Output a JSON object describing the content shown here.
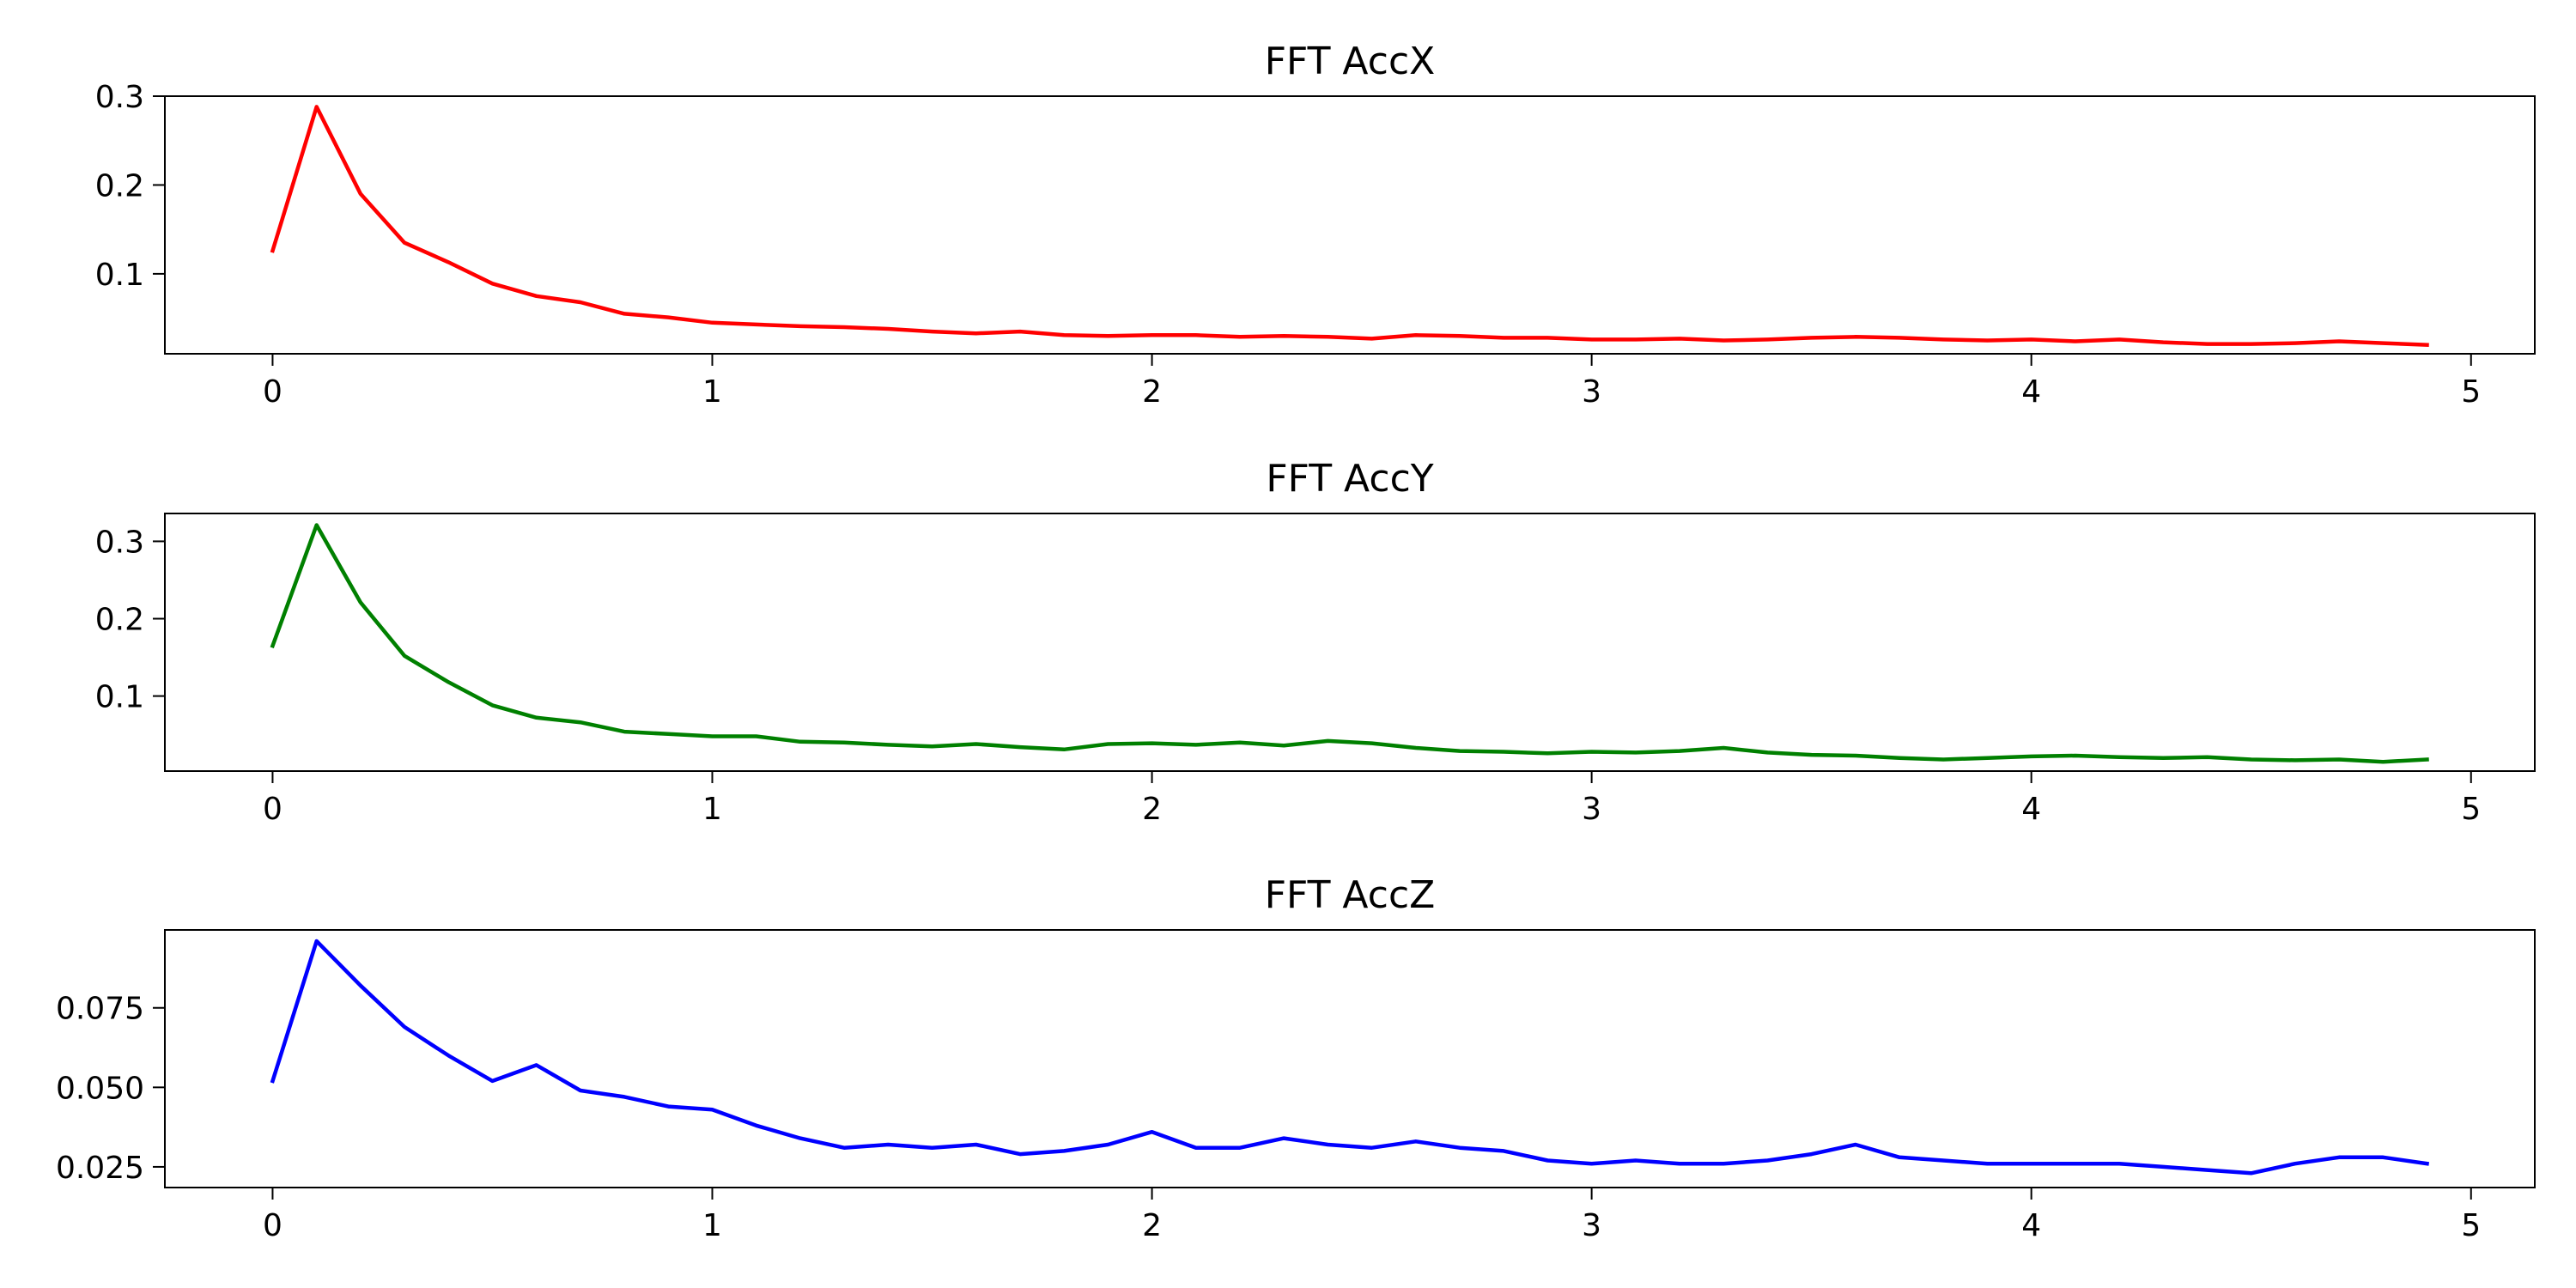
{
  "chart_data": [
    {
      "type": "line",
      "title": "FFT AccX",
      "xlabel": "",
      "ylabel": "",
      "xlim": [
        -0.245,
        5.145
      ],
      "ylim": [
        0.01,
        0.3
      ],
      "xticks": [
        0,
        1,
        2,
        3,
        4,
        5
      ],
      "yticks": [
        0.1,
        0.2,
        0.3
      ],
      "grid": false,
      "color": "#ff0000",
      "series": [
        {
          "x": [
            0,
            0.1,
            0.2,
            0.3,
            0.4,
            0.5,
            0.6,
            0.7,
            0.8,
            0.9,
            1.0,
            1.1,
            1.2,
            1.3,
            1.4,
            1.5,
            1.6,
            1.7,
            1.8,
            1.9,
            2.0,
            2.1,
            2.2,
            2.3,
            2.4,
            2.5,
            2.6,
            2.7,
            2.8,
            2.9,
            3.0,
            3.1,
            3.2,
            3.3,
            3.4,
            3.5,
            3.6,
            3.7,
            3.8,
            3.9,
            4.0,
            4.1,
            4.2,
            4.3,
            4.4,
            4.5,
            4.6,
            4.7,
            4.8,
            4.9
          ],
          "values": [
            0.126,
            0.288,
            0.19,
            0.135,
            0.113,
            0.089,
            0.075,
            0.068,
            0.055,
            0.051,
            0.045,
            0.043,
            0.041,
            0.04,
            0.038,
            0.035,
            0.033,
            0.035,
            0.031,
            0.03,
            0.031,
            0.031,
            0.029,
            0.03,
            0.029,
            0.027,
            0.031,
            0.03,
            0.028,
            0.028,
            0.026,
            0.026,
            0.027,
            0.025,
            0.026,
            0.028,
            0.029,
            0.028,
            0.026,
            0.025,
            0.026,
            0.024,
            0.026,
            0.023,
            0.021,
            0.021,
            0.022,
            0.024,
            0.022,
            0.02
          ]
        }
      ]
    },
    {
      "type": "line",
      "title": "FFT AccY",
      "xlabel": "",
      "ylabel": "",
      "xlim": [
        -0.245,
        5.145
      ],
      "ylim": [
        0.003,
        0.336
      ],
      "xticks": [
        0,
        1,
        2,
        3,
        4,
        5
      ],
      "yticks": [
        0.1,
        0.2,
        0.3
      ],
      "grid": false,
      "color": "#008000",
      "series": [
        {
          "x": [
            0,
            0.1,
            0.2,
            0.3,
            0.4,
            0.5,
            0.6,
            0.7,
            0.8,
            0.9,
            1.0,
            1.1,
            1.2,
            1.3,
            1.4,
            1.5,
            1.6,
            1.7,
            1.8,
            1.9,
            2.0,
            2.1,
            2.2,
            2.3,
            2.4,
            2.5,
            2.6,
            2.7,
            2.8,
            2.9,
            3.0,
            3.1,
            3.2,
            3.3,
            3.4,
            3.5,
            3.6,
            3.7,
            3.8,
            3.9,
            4.0,
            4.1,
            4.2,
            4.3,
            4.4,
            4.5,
            4.6,
            4.7,
            4.8,
            4.9
          ],
          "values": [
            0.165,
            0.321,
            0.221,
            0.152,
            0.118,
            0.088,
            0.072,
            0.066,
            0.054,
            0.051,
            0.048,
            0.048,
            0.041,
            0.04,
            0.037,
            0.035,
            0.038,
            0.034,
            0.031,
            0.038,
            0.039,
            0.037,
            0.04,
            0.036,
            0.042,
            0.039,
            0.033,
            0.029,
            0.028,
            0.026,
            0.028,
            0.027,
            0.029,
            0.033,
            0.027,
            0.024,
            0.023,
            0.02,
            0.018,
            0.02,
            0.022,
            0.023,
            0.021,
            0.02,
            0.021,
            0.018,
            0.017,
            0.018,
            0.015,
            0.018
          ]
        }
      ]
    },
    {
      "type": "line",
      "title": "FFT AccZ",
      "xlabel": "",
      "ylabel": "",
      "xlim": [
        -0.245,
        5.145
      ],
      "ylim": [
        0.0185,
        0.0995
      ],
      "xticks": [
        0,
        1,
        2,
        3,
        4,
        5
      ],
      "yticks": [
        0.025,
        0.05,
        0.075
      ],
      "ytick_labels": [
        "0.025",
        "0.050",
        "0.075"
      ],
      "grid": false,
      "color": "#0000ff",
      "series": [
        {
          "x": [
            0,
            0.1,
            0.2,
            0.3,
            0.4,
            0.5,
            0.6,
            0.7,
            0.8,
            0.9,
            1.0,
            1.1,
            1.2,
            1.3,
            1.4,
            1.5,
            1.6,
            1.7,
            1.8,
            1.9,
            2.0,
            2.1,
            2.2,
            2.3,
            2.4,
            2.5,
            2.6,
            2.7,
            2.8,
            2.9,
            3.0,
            3.1,
            3.2,
            3.3,
            3.4,
            3.5,
            3.6,
            3.7,
            3.8,
            3.9,
            4.0,
            4.1,
            4.2,
            4.3,
            4.4,
            4.5,
            4.6,
            4.7,
            4.8,
            4.9
          ],
          "values": [
            0.052,
            0.096,
            0.082,
            0.069,
            0.06,
            0.052,
            0.057,
            0.049,
            0.047,
            0.044,
            0.043,
            0.038,
            0.034,
            0.031,
            0.032,
            0.031,
            0.032,
            0.029,
            0.03,
            0.032,
            0.036,
            0.031,
            0.031,
            0.034,
            0.032,
            0.031,
            0.033,
            0.031,
            0.03,
            0.027,
            0.026,
            0.027,
            0.026,
            0.026,
            0.027,
            0.029,
            0.032,
            0.028,
            0.027,
            0.026,
            0.026,
            0.026,
            0.026,
            0.025,
            0.024,
            0.023,
            0.026,
            0.028,
            0.028,
            0.026
          ]
        }
      ]
    }
  ]
}
